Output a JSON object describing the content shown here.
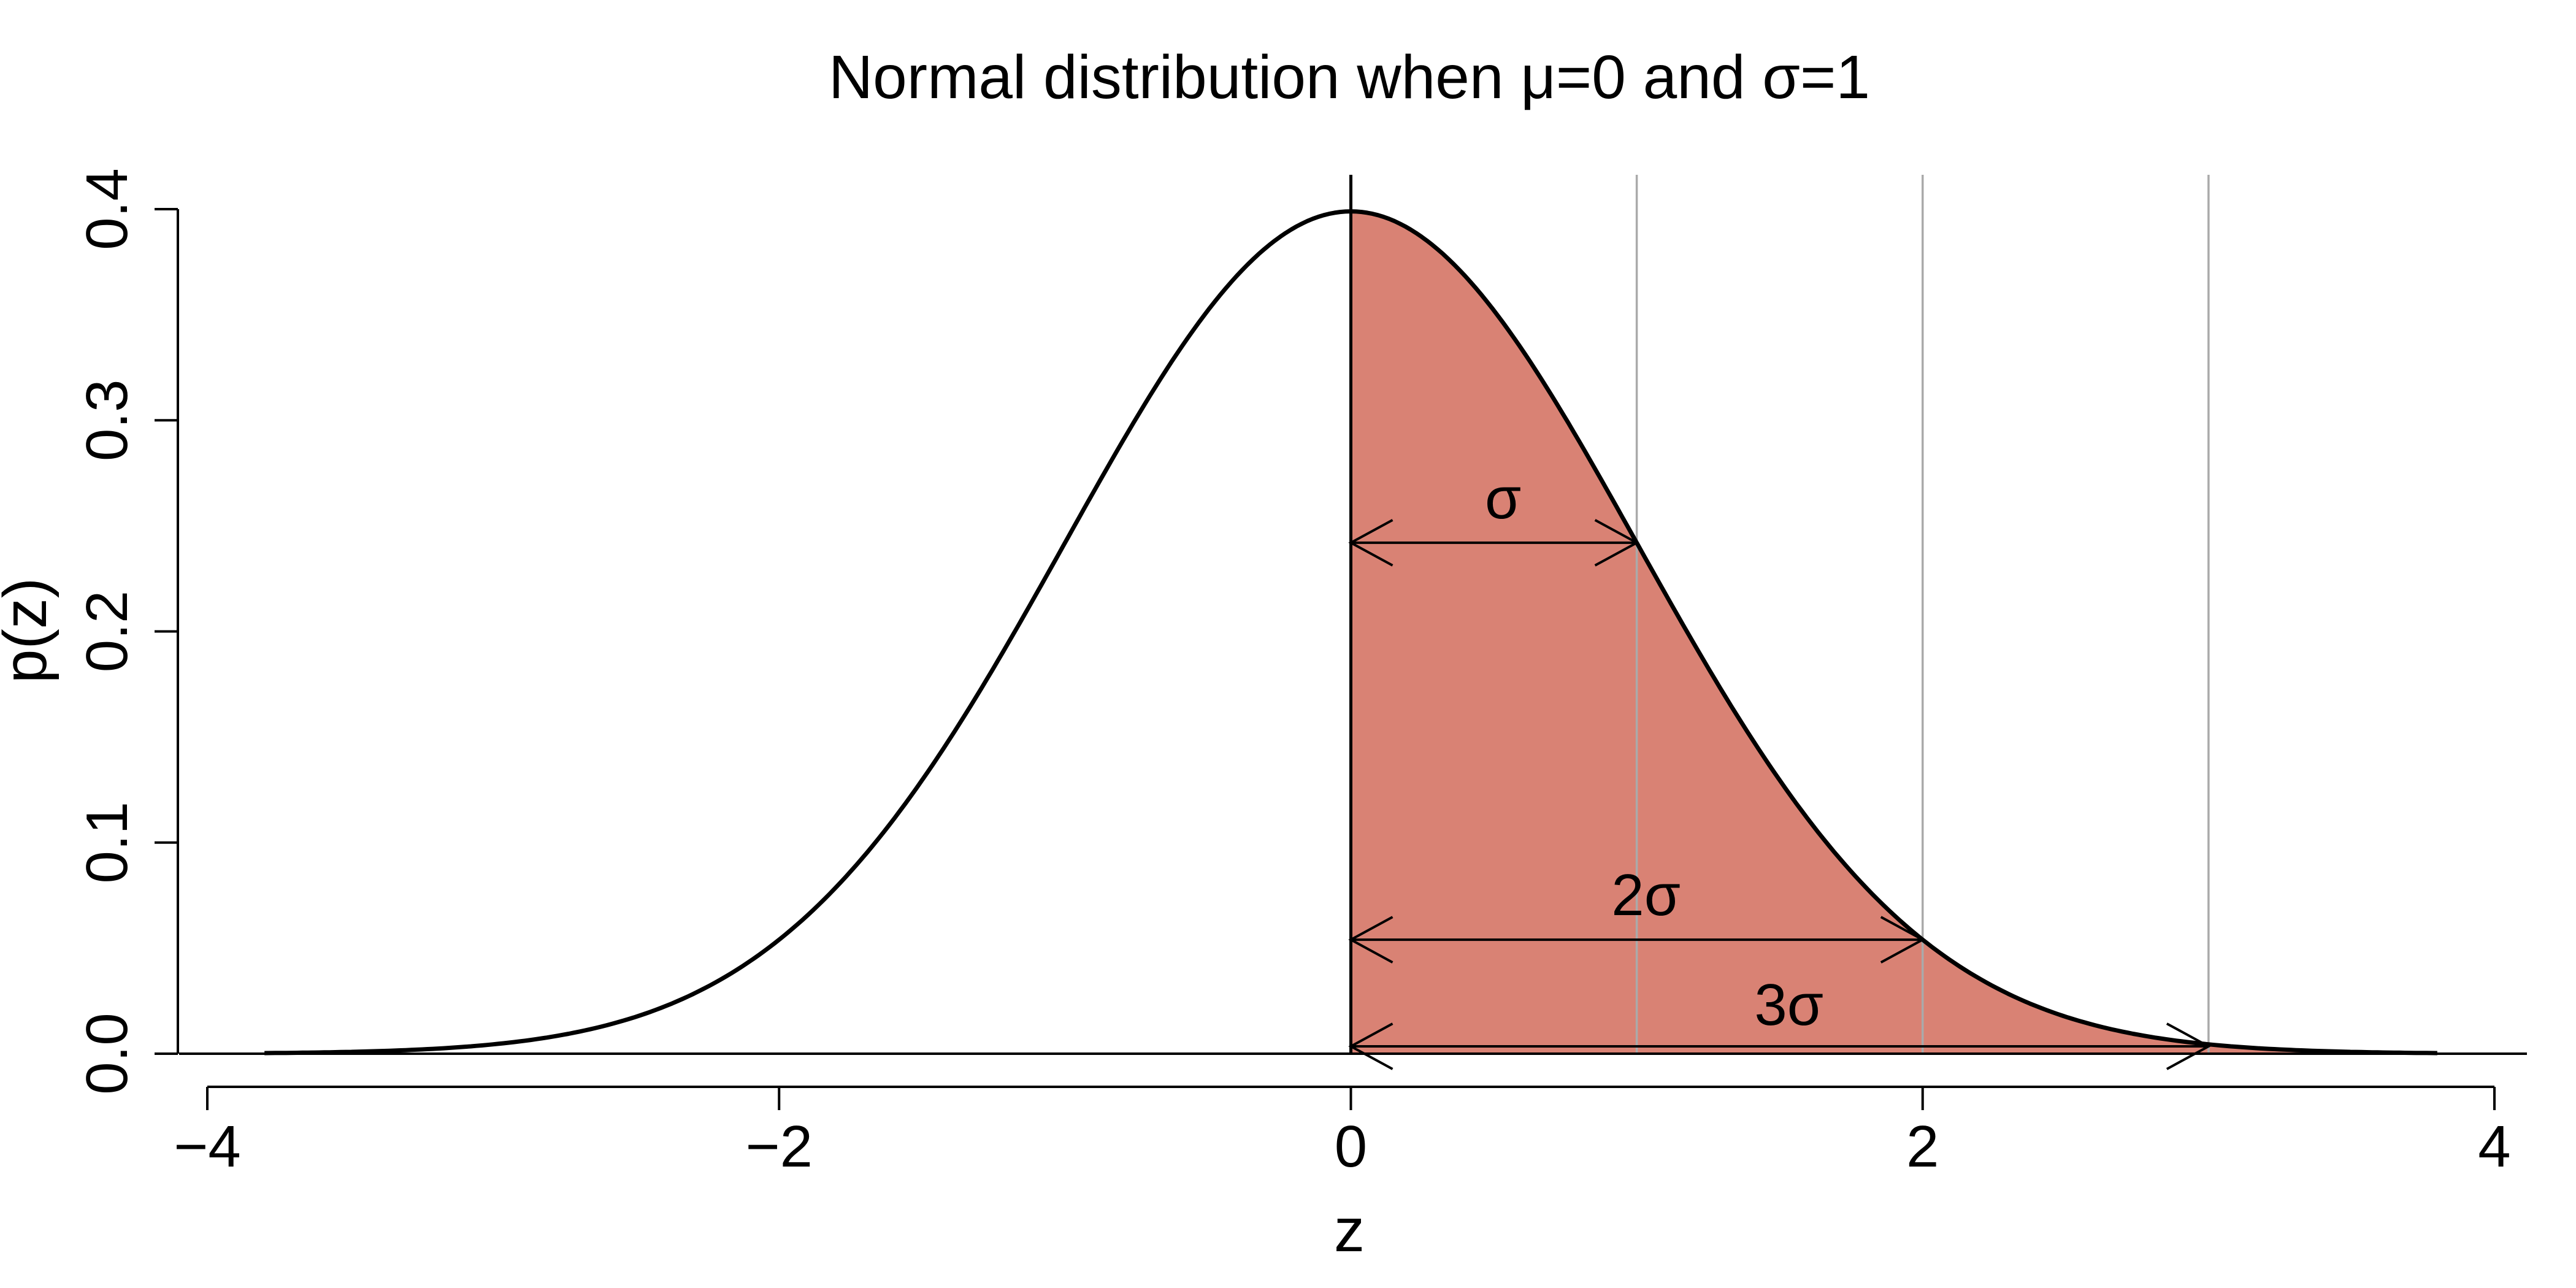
{
  "chart_data": {
    "type": "area",
    "title": "Normal distribution when μ=0 and σ=1",
    "xlabel": "z",
    "ylabel": "p(z)",
    "xlim": [
      -4,
      4
    ],
    "ylim": [
      0,
      0.4
    ],
    "x_ticks": [
      "−4",
      "−2",
      "0",
      "2",
      "4"
    ],
    "y_ticks": [
      "0.0",
      "0.1",
      "0.2",
      "0.3",
      "0.4"
    ],
    "grid": false,
    "legend": "none",
    "series": [
      {
        "x": [
          -3.8,
          -3.6,
          -3.4,
          -3.2,
          -3.0,
          -2.8,
          -2.6,
          -2.4,
          -2.2,
          -2.0,
          -1.8,
          -1.6,
          -1.4,
          -1.2,
          -1.0,
          -0.8,
          -0.6,
          -0.4,
          -0.2,
          0.0,
          0.2,
          0.4,
          0.6,
          0.8,
          1.0,
          1.2,
          1.4,
          1.6,
          1.8,
          2.0,
          2.2,
          2.4,
          2.6,
          2.8,
          3.0,
          3.2,
          3.4,
          3.6,
          3.8
        ],
        "y": [
          0.0003,
          0.0006,
          0.0012,
          0.0024,
          0.0044,
          0.0079,
          0.0136,
          0.0224,
          0.0355,
          0.054,
          0.079,
          0.1109,
          0.1497,
          0.1942,
          0.242,
          0.2897,
          0.3332,
          0.3683,
          0.391,
          0.3989,
          0.391,
          0.3683,
          0.3332,
          0.2897,
          0.242,
          0.1942,
          0.1497,
          0.1109,
          0.079,
          0.054,
          0.0355,
          0.0224,
          0.0136,
          0.0079,
          0.0044,
          0.0024,
          0.0012,
          0.0006,
          0.0003
        ]
      }
    ],
    "shaded_region": {
      "from": 0,
      "to": 3.8,
      "color": "#d98274"
    },
    "reference_lines_x": [
      0,
      1,
      2,
      3
    ],
    "annotations": [
      {
        "label": "σ",
        "from": 0,
        "to": 1,
        "y": 0.242
      },
      {
        "label": "2σ",
        "from": 0,
        "to": 2,
        "y": 0.054
      },
      {
        "label": "3σ",
        "from": 0,
        "to": 3,
        "y": 0.0035
      }
    ],
    "colors": {
      "fill": "#d98274",
      "curve": "#000000",
      "ref_line": "#aaaaaa"
    }
  }
}
